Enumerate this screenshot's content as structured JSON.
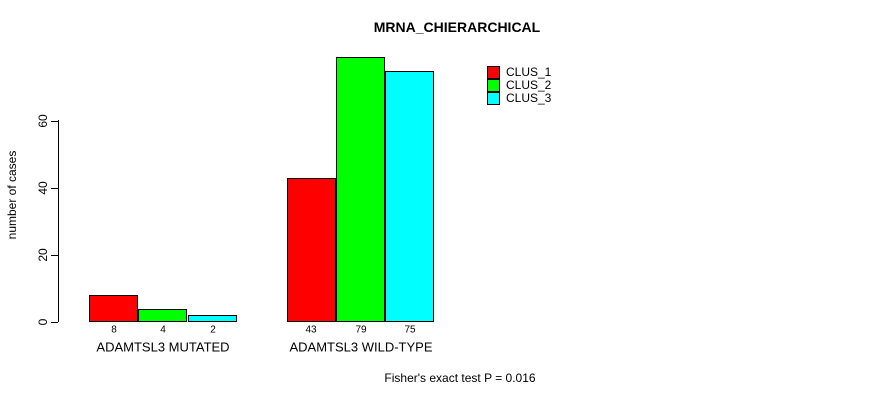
{
  "chart_data": {
    "type": "bar",
    "title": "MRNA_CHIERARCHICAL",
    "ylabel": "number of cases",
    "xlabel": "",
    "categories": [
      "ADAMTSL3 MUTATED",
      "ADAMTSL3 WILD-TYPE"
    ],
    "series": [
      {
        "name": "CLUS_1",
        "color": "#ff0000",
        "values": [
          8,
          43
        ]
      },
      {
        "name": "CLUS_2",
        "color": "#00ff00",
        "values": [
          4,
          79
        ]
      },
      {
        "name": "CLUS_3",
        "color": "#00ffff",
        "values": [
          2,
          75
        ]
      }
    ],
    "bar_value_labels": [
      [
        "8",
        "4",
        "2"
      ],
      [
        "43",
        "79",
        "75"
      ]
    ],
    "yticks": [
      0,
      20,
      40,
      60
    ],
    "axis_range": [
      0,
      60
    ],
    "ylim": [
      0,
      79
    ],
    "grid": false,
    "legend_position": "top-right",
    "bar_border_color": "#000000",
    "axis_color": "#000000",
    "background_color": "#ffffff",
    "annotation": "Fisher's exact test P = 0.016"
  }
}
